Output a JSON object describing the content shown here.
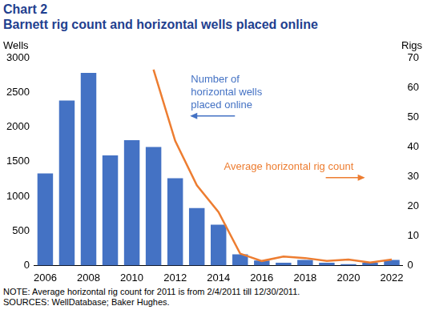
{
  "chart_data": {
    "type": "bar",
    "title": "Chart 2",
    "subtitle": "Barnett rig count and horizontal wells placed online",
    "categories": [
      "2006",
      null,
      "2008",
      null,
      "2010",
      null,
      "2012",
      null,
      "2014",
      null,
      "2016",
      null,
      "2018",
      null,
      "2020",
      null,
      "2022"
    ],
    "series": [
      {
        "name": "Number of horizontal wells placed online",
        "type": "bar",
        "color": "#4472C4",
        "values": [
          1330,
          2380,
          2780,
          1590,
          1810,
          1710,
          1260,
          830,
          590,
          160,
          70,
          40,
          80,
          40,
          20,
          40,
          80
        ]
      },
      {
        "name": "Average horizontal rig count",
        "type": "line",
        "color": "#ED7D31",
        "axis": "y2",
        "values": [
          null,
          null,
          null,
          null,
          null,
          66,
          42,
          27,
          18,
          4,
          1.5,
          3,
          2.5,
          1.5,
          2,
          1,
          2
        ]
      }
    ],
    "y_label": "Wells",
    "y2_label": "Rigs",
    "ylim": [
      0,
      3000
    ],
    "yticks": [
      0,
      500,
      1000,
      1500,
      2000,
      2500,
      3000
    ],
    "y2lim": [
      0,
      70
    ],
    "y2ticks": [
      0,
      10,
      20,
      30,
      40,
      50,
      60,
      70
    ],
    "grid": false,
    "notes": [
      "NOTE: Average horizontal rig count for 2011 is from 2/4/2011 till 12/30/2011.",
      "SOURCES: WellDatabase; Baker Hughes."
    ]
  }
}
